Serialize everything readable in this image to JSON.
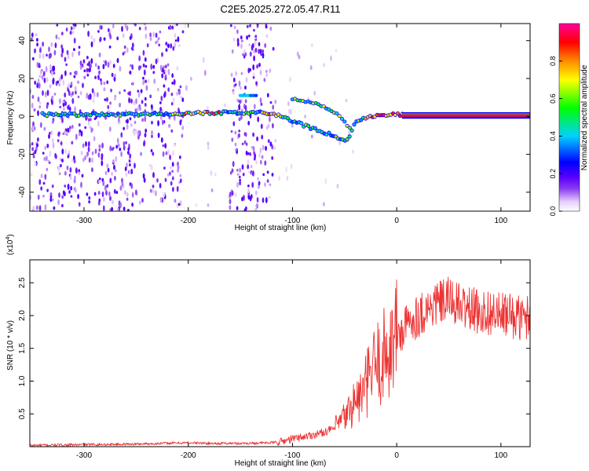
{
  "figure": {
    "title": "C2E5.2025.272.05.47.R11"
  },
  "chart_data": [
    {
      "type": "heatmap",
      "panel": "spectrogram",
      "xlabel": "Height of straight line (km)",
      "ylabel": "Frequency (Hz)",
      "xlim": [
        -352,
        128
      ],
      "ylim": [
        -50,
        49
      ],
      "xticks": [
        -300,
        -200,
        -100,
        0,
        100
      ],
      "yticks": [
        -40,
        -20,
        0,
        20,
        40
      ],
      "colorbar": {
        "label": "Normalized spectral amplitude",
        "range": [
          0,
          1
        ],
        "ticks": [
          "0.0",
          "0.2",
          "0.4",
          "0.6",
          "0.8"
        ],
        "colormap": [
          "#ffffff",
          "#e6cffb",
          "#8a3cf0",
          "#5a00ff",
          "#0000ff",
          "#00d2ff",
          "#00ff00",
          "#ffff00",
          "#ff8c00",
          "#ff0000",
          "#ff00a0"
        ]
      },
      "main_track": [
        {
          "x": -340,
          "y": 1.0
        },
        {
          "x": -300,
          "y": 1.0
        },
        {
          "x": -250,
          "y": 1.0
        },
        {
          "x": -200,
          "y": 1.8
        },
        {
          "x": -160,
          "y": 2.0
        },
        {
          "x": -130,
          "y": 2.2
        },
        {
          "x": -118,
          "y": 1.5
        },
        {
          "x": -100,
          "y": -2.5
        },
        {
          "x": -80,
          "y": -6.5
        },
        {
          "x": -60,
          "y": -10.0
        },
        {
          "x": -48,
          "y": -13.5
        },
        {
          "x": -43,
          "y": -7.0
        },
        {
          "x": -38,
          "y": -2.0
        },
        {
          "x": -20,
          "y": 0.5
        },
        {
          "x": 0,
          "y": 1.0
        },
        {
          "x": 60,
          "y": 0.5
        },
        {
          "x": 128,
          "y": 0.5
        }
      ],
      "secondary_track": [
        {
          "x": -100,
          "y": 9.5
        },
        {
          "x": -80,
          "y": 7.0
        },
        {
          "x": -65,
          "y": 4.0
        },
        {
          "x": -55,
          "y": 0.0
        },
        {
          "x": -45,
          "y": -6.0
        }
      ],
      "noise_bands": [
        {
          "x": [
            -352,
            -205
          ],
          "level": "high"
        },
        {
          "x": [
            -160,
            -118
          ],
          "level": "high"
        }
      ],
      "isolated_feature": {
        "x": [
          -150,
          -135
        ],
        "y": 11
      }
    },
    {
      "type": "line",
      "panel": "snr",
      "xlabel": "Height of straight line (km)",
      "ylabel": "SNR (10 * v/v)",
      "y_multiplier": "(x10",
      "y_multiplier_exp": "4",
      "y_multiplier_close": ")",
      "xlim": [
        -352,
        128
      ],
      "ylim": [
        0,
        2.85
      ],
      "xticks": [
        -300,
        -200,
        -100,
        0,
        100
      ],
      "yticks": [
        0.5,
        1.0,
        1.5,
        2.0,
        2.5
      ],
      "ytick_labels": [
        "0.5",
        "1.0",
        "1.5",
        "2.0",
        "2.5"
      ],
      "line_color": "#ee3333",
      "series": [
        {
          "x": [
            -352,
            -300,
            -250,
            -200,
            -180,
            -150,
            -120,
            -110,
            -100,
            -90,
            -80,
            -70,
            -60,
            -50,
            -45,
            -40,
            -35,
            -30,
            -25,
            -20,
            -15,
            -10,
            -5,
            0,
            5,
            10,
            15,
            20,
            25,
            30,
            35,
            40,
            45,
            50,
            55,
            60,
            70,
            80,
            90,
            100,
            110,
            120,
            128
          ],
          "y": [
            0.02,
            0.03,
            0.04,
            0.06,
            0.05,
            0.05,
            0.06,
            0.08,
            0.12,
            0.15,
            0.18,
            0.22,
            0.28,
            0.45,
            0.55,
            0.7,
            0.75,
            0.9,
            1.1,
            1.25,
            1.3,
            1.45,
            1.55,
            1.7,
            1.75,
            1.85,
            1.95,
            2.0,
            2.05,
            2.1,
            2.15,
            2.2,
            2.2,
            2.25,
            2.2,
            2.15,
            2.1,
            2.05,
            2.05,
            2.0,
            2.0,
            1.95,
            2.0
          ]
        }
      ]
    }
  ]
}
